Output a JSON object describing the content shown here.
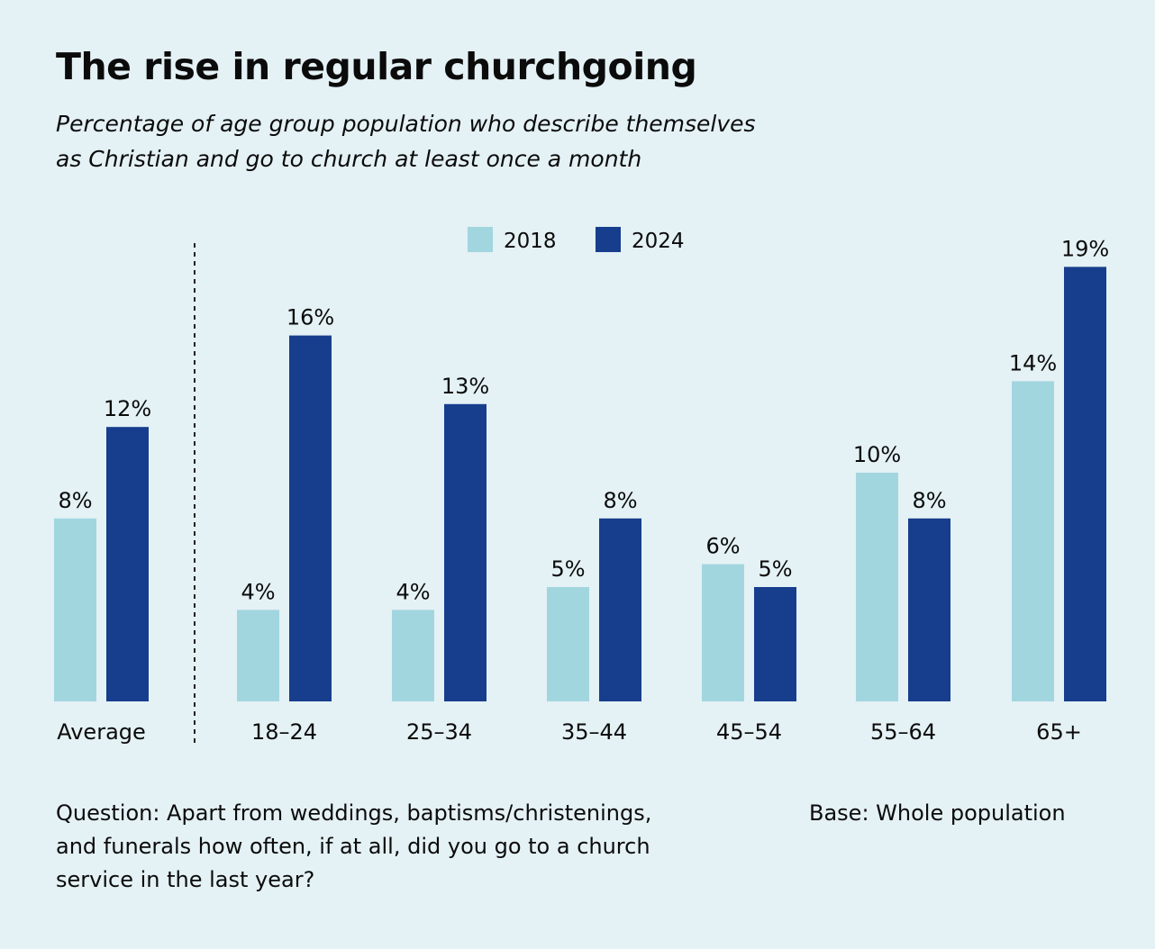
{
  "title": "The rise in regular churchgoing",
  "subtitle_lines": [
    "Percentage of age group population who describe themselves",
    "as Christian and go to church at least once a month"
  ],
  "footnote_lines": [
    "Question: Apart from weddings, baptisms/christenings,",
    "and funerals how often, if at all, did you go to a church",
    "service in the last year?"
  ],
  "base": "Base: Whole population",
  "chart_data": {
    "type": "bar",
    "categories": [
      "Average",
      "18–24",
      "25–34",
      "35–44",
      "45–54",
      "55–64",
      "65+"
    ],
    "series": [
      {
        "name": "2018",
        "values": [
          8,
          4,
          4,
          5,
          6,
          10,
          14
        ],
        "labels": [
          "8%",
          "4%",
          "4%",
          "5%",
          "6%",
          "10%",
          "14%"
        ],
        "color": "#a2d6df"
      },
      {
        "name": "2024",
        "values": [
          12,
          16,
          13,
          8,
          5,
          8,
          19
        ],
        "labels": [
          "12%",
          "16%",
          "13%",
          "8%",
          "5%",
          "8%",
          "19%"
        ],
        "color": "#173e8d"
      }
    ],
    "ylim": [
      0,
      19
    ],
    "legend_position": "top-center",
    "separator_after": "Average",
    "grid": false
  }
}
